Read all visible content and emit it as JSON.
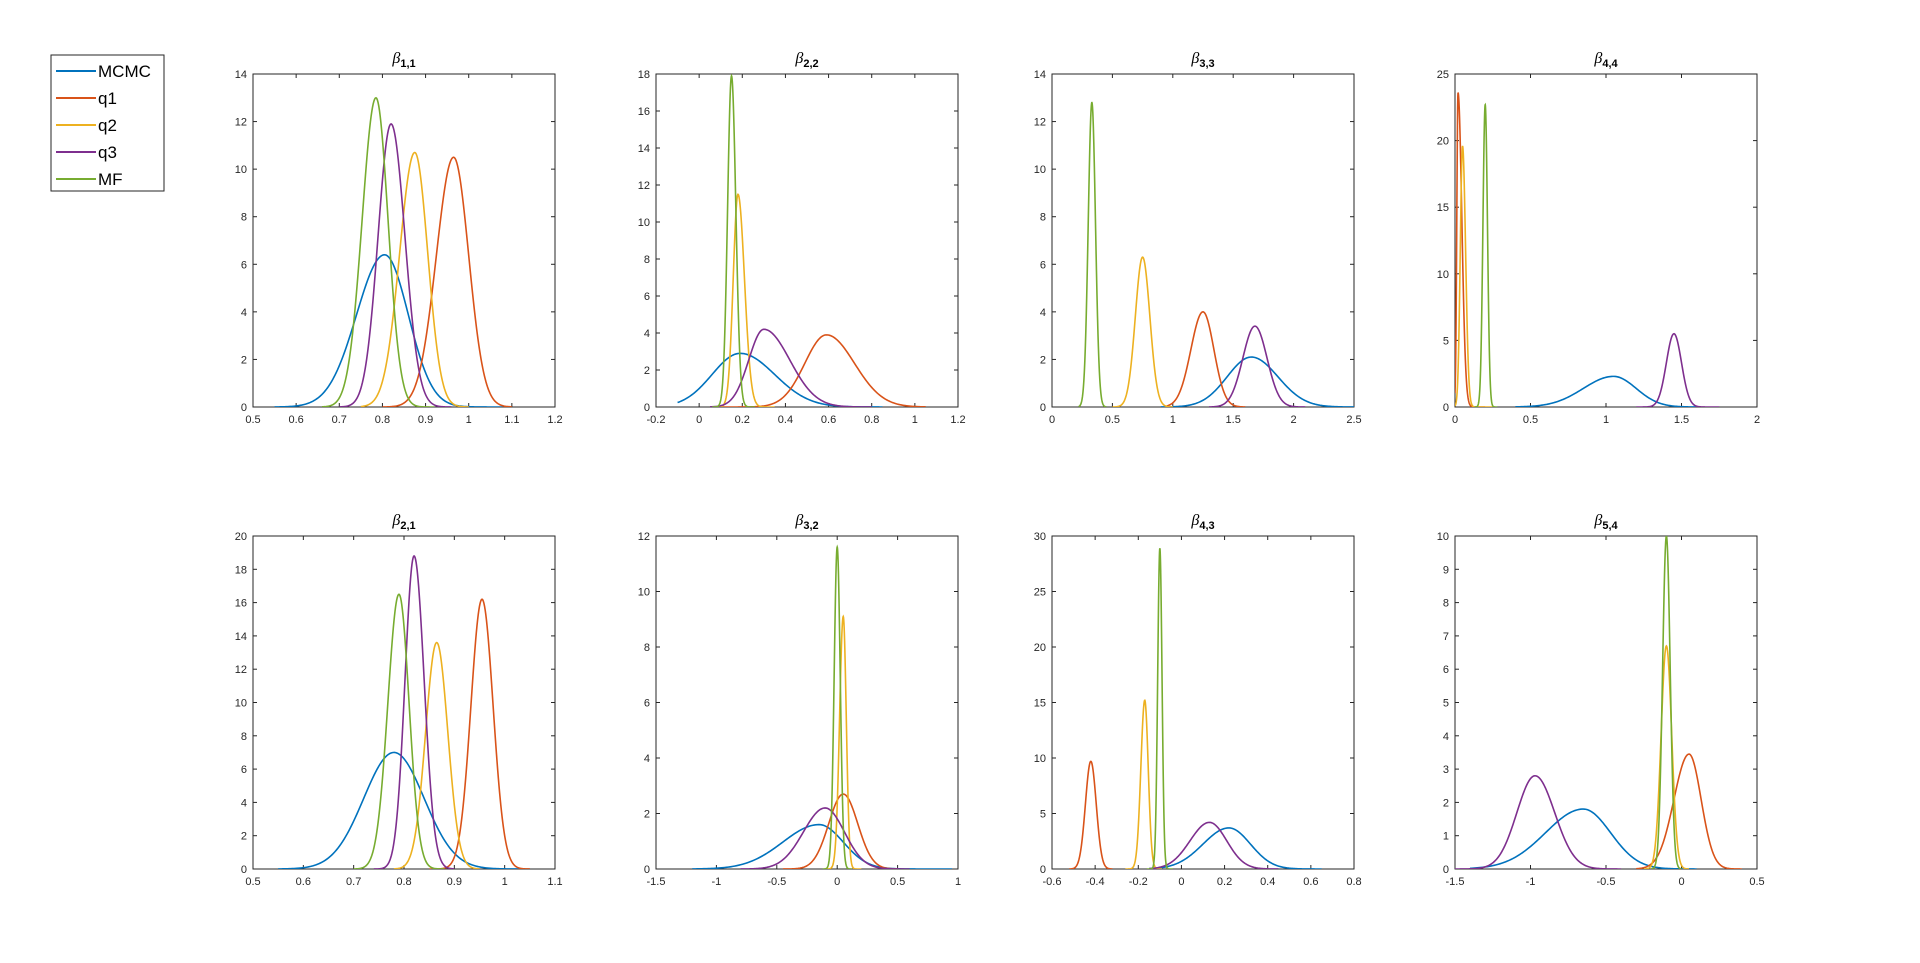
{
  "legend": [
    {
      "name": "MCMC",
      "color": "#0072BD"
    },
    {
      "name": "q1",
      "color": "#D95319"
    },
    {
      "name": "q2",
      "color": "#EDB120"
    },
    {
      "name": "q3",
      "color": "#7E2F8E"
    },
    {
      "name": "MF",
      "color": "#77AC30"
    }
  ],
  "chart_data": [
    {
      "type": "line",
      "title_main": "β",
      "title_sub": "1,1",
      "xlim": [
        0.5,
        1.2
      ],
      "ylim": [
        0,
        14
      ],
      "xticks": [
        0.5,
        0.6,
        0.7,
        0.8,
        0.9,
        1,
        1.1,
        1.2
      ],
      "yticks": [
        0,
        2,
        4,
        6,
        8,
        10,
        12,
        14
      ],
      "series": [
        {
          "name": "MCMC",
          "peak": 0.805,
          "height": 6.4,
          "sl": 0.065,
          "sr": 0.055,
          "lo": 0.55,
          "hi": 1.08
        },
        {
          "name": "q1",
          "peak": 0.965,
          "height": 10.5,
          "sl": 0.04,
          "sr": 0.035,
          "lo": 0.8,
          "hi": 1.1
        },
        {
          "name": "q2",
          "peak": 0.875,
          "height": 10.7,
          "sl": 0.035,
          "sr": 0.03,
          "lo": 0.75,
          "hi": 1.0
        },
        {
          "name": "q3",
          "peak": 0.82,
          "height": 11.9,
          "sl": 0.03,
          "sr": 0.032,
          "lo": 0.7,
          "hi": 0.96
        },
        {
          "name": "MF",
          "peak": 0.785,
          "height": 13.0,
          "sl": 0.032,
          "sr": 0.028,
          "lo": 0.66,
          "hi": 0.92
        }
      ]
    },
    {
      "type": "line",
      "title_main": "β",
      "title_sub": "2,2",
      "xlim": [
        -0.2,
        1.2
      ],
      "ylim": [
        0,
        18
      ],
      "xticks": [
        -0.2,
        0,
        0.2,
        0.4,
        0.6,
        0.8,
        1,
        1.2
      ],
      "yticks": [
        0,
        2,
        4,
        6,
        8,
        10,
        12,
        14,
        16,
        18
      ],
      "series": [
        {
          "name": "MCMC",
          "peak": 0.19,
          "height": 2.9,
          "sl": 0.13,
          "sr": 0.16,
          "lo": -0.1,
          "hi": 0.85
        },
        {
          "name": "q1",
          "peak": 0.59,
          "height": 3.9,
          "sl": 0.1,
          "sr": 0.13,
          "lo": 0.1,
          "hi": 1.05
        },
        {
          "name": "q2",
          "peak": 0.18,
          "height": 11.5,
          "sl": 0.022,
          "sr": 0.03,
          "lo": 0.05,
          "hi": 0.35
        },
        {
          "name": "q3",
          "peak": 0.3,
          "height": 4.2,
          "sl": 0.07,
          "sr": 0.12,
          "lo": 0.05,
          "hi": 0.8
        },
        {
          "name": "MF",
          "peak": 0.15,
          "height": 17.9,
          "sl": 0.018,
          "sr": 0.02,
          "lo": 0.06,
          "hi": 0.26
        }
      ]
    },
    {
      "type": "line",
      "title_main": "β",
      "title_sub": "3,3",
      "xlim": [
        0,
        2.5
      ],
      "ylim": [
        0,
        14
      ],
      "xticks": [
        0,
        0.5,
        1,
        1.5,
        2,
        2.5
      ],
      "yticks": [
        0,
        2,
        4,
        6,
        8,
        10,
        12,
        14
      ],
      "series": [
        {
          "name": "MCMC",
          "peak": 1.65,
          "height": 2.1,
          "sl": 0.2,
          "sr": 0.22,
          "lo": 0.9,
          "hi": 2.5
        },
        {
          "name": "q1",
          "peak": 1.25,
          "height": 4.0,
          "sl": 0.1,
          "sr": 0.09,
          "lo": 0.95,
          "hi": 1.6
        },
        {
          "name": "q2",
          "peak": 0.75,
          "height": 6.3,
          "sl": 0.06,
          "sr": 0.06,
          "lo": 0.5,
          "hi": 1.0
        },
        {
          "name": "q3",
          "peak": 1.68,
          "height": 3.4,
          "sl": 0.1,
          "sr": 0.1,
          "lo": 1.3,
          "hi": 2.1
        },
        {
          "name": "MF",
          "peak": 0.33,
          "height": 12.8,
          "sl": 0.03,
          "sr": 0.03,
          "lo": 0.22,
          "hi": 0.45
        }
      ]
    },
    {
      "type": "line",
      "title_main": "β",
      "title_sub": "4,4",
      "xlim": [
        0,
        2
      ],
      "ylim": [
        0,
        25
      ],
      "xticks": [
        0,
        0.5,
        1,
        1.5,
        2
      ],
      "yticks": [
        0,
        5,
        10,
        15,
        20,
        25
      ],
      "series": [
        {
          "name": "MCMC",
          "peak": 1.05,
          "height": 2.3,
          "sl": 0.2,
          "sr": 0.15,
          "lo": 0.4,
          "hi": 1.6
        },
        {
          "name": "q1",
          "peak": 0.02,
          "height": 23.6,
          "sl": 0.008,
          "sr": 0.025,
          "lo": 0.0,
          "hi": 0.2
        },
        {
          "name": "q2",
          "peak": 0.05,
          "height": 19.6,
          "sl": 0.015,
          "sr": 0.02,
          "lo": 0.0,
          "hi": 0.25
        },
        {
          "name": "q3",
          "peak": 1.45,
          "height": 5.5,
          "sl": 0.05,
          "sr": 0.05,
          "lo": 1.2,
          "hi": 1.75
        },
        {
          "name": "MF",
          "peak": 0.2,
          "height": 22.7,
          "sl": 0.015,
          "sr": 0.015,
          "lo": 0.13,
          "hi": 0.28
        }
      ]
    },
    {
      "type": "line",
      "title_main": "β",
      "title_sub": "2,1",
      "xlim": [
        0.5,
        1.1
      ],
      "ylim": [
        0,
        20
      ],
      "xticks": [
        0.5,
        0.6,
        0.7,
        0.8,
        0.9,
        1,
        1.1
      ],
      "yticks": [
        0,
        2,
        4,
        6,
        8,
        10,
        12,
        14,
        16,
        18,
        20
      ],
      "series": [
        {
          "name": "MCMC",
          "peak": 0.78,
          "height": 7.0,
          "sl": 0.06,
          "sr": 0.06,
          "lo": 0.55,
          "hi": 1.05
        },
        {
          "name": "q1",
          "peak": 0.955,
          "height": 16.2,
          "sl": 0.022,
          "sr": 0.022,
          "lo": 0.85,
          "hi": 1.05
        },
        {
          "name": "q2",
          "peak": 0.865,
          "height": 13.6,
          "sl": 0.022,
          "sr": 0.022,
          "lo": 0.78,
          "hi": 0.95
        },
        {
          "name": "q3",
          "peak": 0.82,
          "height": 18.8,
          "sl": 0.018,
          "sr": 0.02,
          "lo": 0.74,
          "hi": 0.9
        },
        {
          "name": "MF",
          "peak": 0.79,
          "height": 16.5,
          "sl": 0.022,
          "sr": 0.02,
          "lo": 0.7,
          "hi": 0.88
        }
      ]
    },
    {
      "type": "line",
      "title_main": "β",
      "title_sub": "3,2",
      "xlim": [
        -1.5,
        1
      ],
      "ylim": [
        0,
        12
      ],
      "xticks": [
        -1.5,
        -1,
        -0.5,
        0,
        0.5,
        1
      ],
      "yticks": [
        0,
        2,
        4,
        6,
        8,
        10,
        12
      ],
      "series": [
        {
          "name": "MCMC",
          "peak": -0.15,
          "height": 1.6,
          "sl": 0.3,
          "sr": 0.2,
          "lo": -1.2,
          "hi": 0.95
        },
        {
          "name": "q1",
          "peak": 0.05,
          "height": 2.7,
          "sl": 0.12,
          "sr": 0.12,
          "lo": -0.45,
          "hi": 0.5
        },
        {
          "name": "q2",
          "peak": 0.05,
          "height": 9.1,
          "sl": 0.03,
          "sr": 0.025,
          "lo": -0.1,
          "hi": 0.2
        },
        {
          "name": "q3",
          "peak": -0.1,
          "height": 2.2,
          "sl": 0.18,
          "sr": 0.16,
          "lo": -0.8,
          "hi": 0.6
        },
        {
          "name": "MF",
          "peak": 0.0,
          "height": 11.6,
          "sl": 0.025,
          "sr": 0.025,
          "lo": -0.12,
          "hi": 0.12
        }
      ]
    },
    {
      "type": "line",
      "title_main": "β",
      "title_sub": "4,3",
      "xlim": [
        -0.6,
        0.8
      ],
      "ylim": [
        0,
        30
      ],
      "xticks": [
        -0.6,
        -0.4,
        -0.2,
        0,
        0.2,
        0.4,
        0.6,
        0.8
      ],
      "yticks": [
        0,
        5,
        10,
        15,
        20,
        25,
        30
      ],
      "series": [
        {
          "name": "MCMC",
          "peak": 0.22,
          "height": 3.7,
          "sl": 0.12,
          "sr": 0.1,
          "lo": -0.15,
          "hi": 0.65
        },
        {
          "name": "q1",
          "peak": -0.42,
          "height": 9.7,
          "sl": 0.025,
          "sr": 0.025,
          "lo": -0.52,
          "hi": -0.32
        },
        {
          "name": "q2",
          "peak": -0.17,
          "height": 15.2,
          "sl": 0.018,
          "sr": 0.016,
          "lo": -0.26,
          "hi": -0.09
        },
        {
          "name": "q3",
          "peak": 0.13,
          "height": 4.2,
          "sl": 0.09,
          "sr": 0.08,
          "lo": -0.15,
          "hi": 0.45
        },
        {
          "name": "MF",
          "peak": -0.1,
          "height": 28.9,
          "sl": 0.01,
          "sr": 0.01,
          "lo": -0.16,
          "hi": -0.04
        }
      ]
    },
    {
      "type": "line",
      "title_main": "β",
      "title_sub": "5,4",
      "xlim": [
        -1.5,
        0.5
      ],
      "ylim": [
        0,
        10
      ],
      "xticks": [
        -1.5,
        -1,
        -0.5,
        0,
        0.5
      ],
      "yticks": [
        0,
        1,
        2,
        3,
        4,
        5,
        6,
        7,
        8,
        9,
        10
      ],
      "series": [
        {
          "name": "MCMC",
          "peak": -0.65,
          "height": 1.8,
          "sl": 0.25,
          "sr": 0.18,
          "lo": -1.4,
          "hi": 0.1
        },
        {
          "name": "q1",
          "peak": 0.05,
          "height": 3.45,
          "sl": 0.1,
          "sr": 0.08,
          "lo": -0.3,
          "hi": 0.4
        },
        {
          "name": "q2",
          "peak": -0.1,
          "height": 6.7,
          "sl": 0.035,
          "sr": 0.035,
          "lo": -0.25,
          "hi": 0.05
        },
        {
          "name": "q3",
          "peak": -0.97,
          "height": 2.8,
          "sl": 0.12,
          "sr": 0.13,
          "lo": -1.5,
          "hi": -0.4
        },
        {
          "name": "MF",
          "peak": -0.1,
          "height": 10.0,
          "sl": 0.025,
          "sr": 0.025,
          "lo": -0.2,
          "hi": 0.0
        }
      ]
    }
  ]
}
